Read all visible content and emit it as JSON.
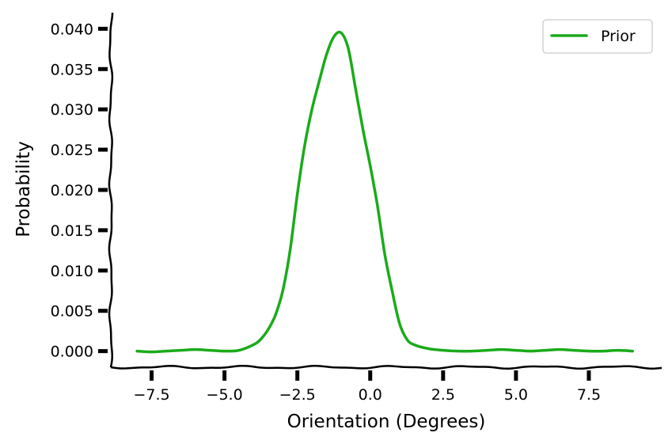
{
  "chart_data": {
    "type": "line",
    "title": "",
    "xlabel": "Orientation (Degrees)",
    "ylabel": "Probability",
    "xlim": [
      -8.9,
      10.0
    ],
    "ylim": [
      -0.002,
      0.042
    ],
    "grid": false,
    "legend_position": "top-right",
    "x_ticks": [
      -7.5,
      -5.0,
      -2.5,
      0.0,
      2.5,
      5.0,
      7.5
    ],
    "x_tick_labels": [
      "−7.5",
      "−5.0",
      "−2.5",
      "0.0",
      "2.5",
      "5.0",
      "7.5"
    ],
    "y_ticks": [
      0.0,
      0.005,
      0.01,
      0.015,
      0.02,
      0.025,
      0.03,
      0.035,
      0.04
    ],
    "y_tick_labels": [
      "0.000",
      "0.005",
      "0.010",
      "0.015",
      "0.020",
      "0.025",
      "0.030",
      "0.035",
      "0.040"
    ],
    "series": [
      {
        "name": "Prior",
        "color": "#1aab1a",
        "x": [
          -8.0,
          -7.5,
          -7.0,
          -6.5,
          -6.0,
          -5.5,
          -5.0,
          -4.5,
          -4.0,
          -3.75,
          -3.5,
          -3.25,
          -3.0,
          -2.75,
          -2.5,
          -2.25,
          -2.0,
          -1.75,
          -1.5,
          -1.25,
          -1.0,
          -0.75,
          -0.5,
          -0.25,
          0.0,
          0.25,
          0.5,
          0.75,
          1.0,
          1.25,
          1.5,
          2.0,
          2.5,
          3.0,
          3.5,
          4.0,
          4.5,
          5.0,
          5.5,
          6.0,
          6.5,
          7.0,
          7.5,
          8.0,
          8.5,
          9.0
        ],
        "y": [
          0.0,
          -0.0001,
          0.0,
          0.0001,
          0.0002,
          0.0001,
          0.0,
          0.0001,
          0.0008,
          0.0015,
          0.0027,
          0.0045,
          0.0075,
          0.0125,
          0.0195,
          0.0255,
          0.03,
          0.0335,
          0.0368,
          0.039,
          0.0395,
          0.0375,
          0.0325,
          0.0275,
          0.023,
          0.018,
          0.012,
          0.0075,
          0.0035,
          0.0015,
          0.0008,
          0.0003,
          0.0001,
          0.0,
          0.0,
          0.0001,
          0.0002,
          0.0001,
          0.0,
          0.0001,
          0.0002,
          0.0001,
          0.0,
          0.0,
          0.0001,
          0.0
        ]
      }
    ]
  }
}
